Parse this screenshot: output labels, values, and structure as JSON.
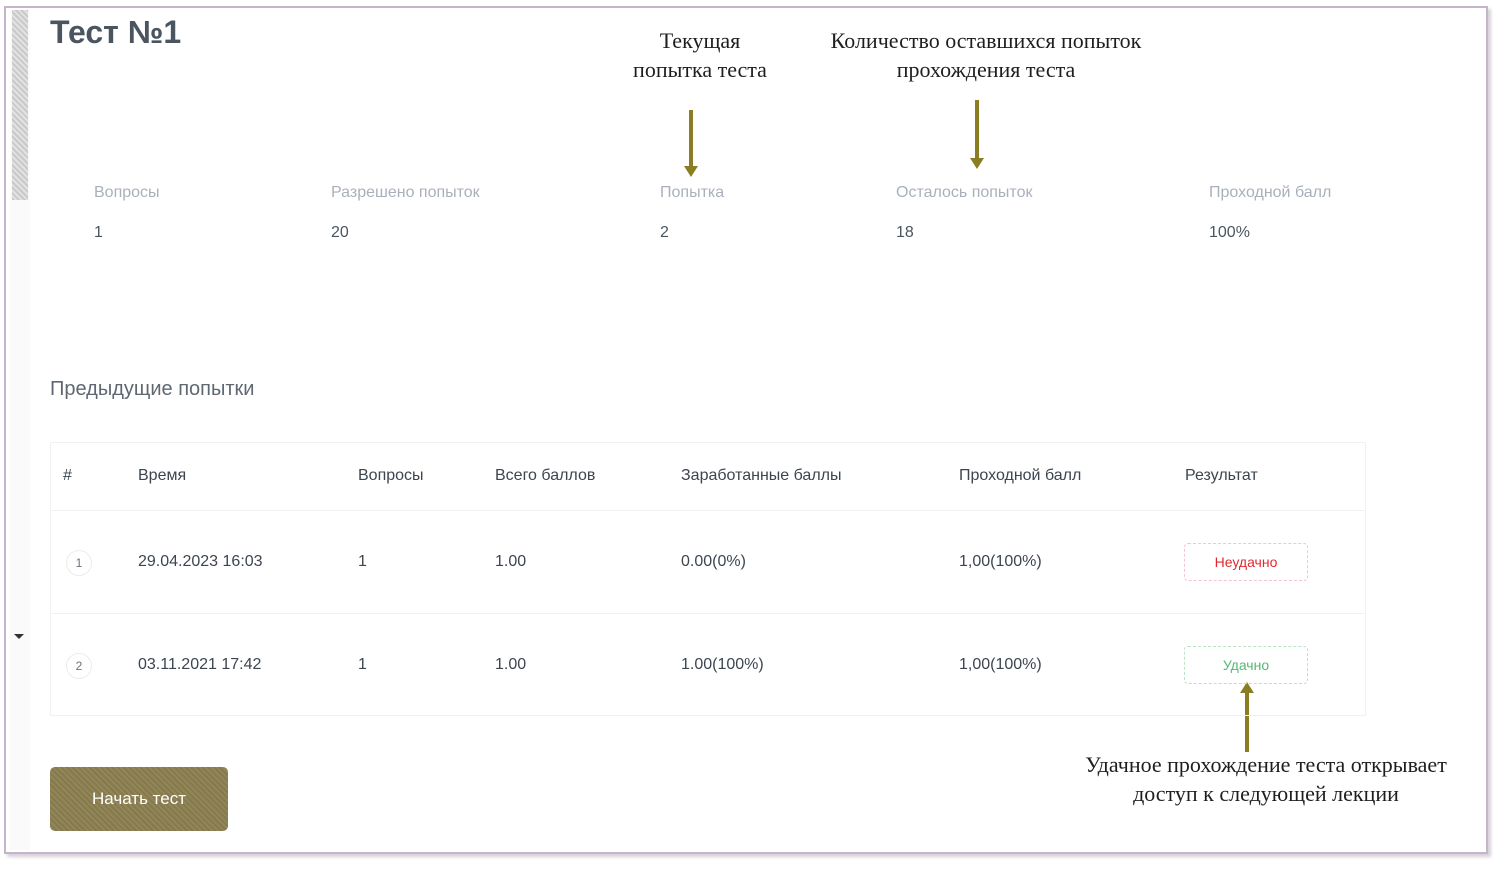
{
  "title": "Тест №1",
  "annotations": {
    "current_attempt": "Текущая\nпопытка теста",
    "remaining_attempts": "Количество оставшихся попыток\nпрохождения теста",
    "success_note": "Удачное прохождение теста открывает\nдоступ к следующей лекции"
  },
  "stats": [
    {
      "label": "Вопросы",
      "value": "1"
    },
    {
      "label": "Разрешено попыток",
      "value": "20"
    },
    {
      "label": "Попытка",
      "value": "2"
    },
    {
      "label": "Осталось попыток",
      "value": "18"
    },
    {
      "label": "Проходной балл",
      "value": "100%"
    }
  ],
  "previous_attempts": {
    "title": "Предыдущие попытки",
    "headers": [
      "#",
      "Время",
      "Вопросы",
      "Всего баллов",
      "Заработанные баллы",
      "Проходной балл",
      "Результат"
    ],
    "rows": [
      {
        "num": "1",
        "time": "29.04.2023 16:03",
        "questions": "1",
        "total": "1.00",
        "earned": "0.00(0%)",
        "passing": "1,00(100%)",
        "result": "Неудачно"
      },
      {
        "num": "2",
        "time": "03.11.2021 17:42",
        "questions": "1",
        "total": "1.00",
        "earned": "1.00(100%)",
        "passing": "1,00(100%)",
        "result": "Удачно"
      }
    ]
  },
  "start_button": "Начать тест",
  "colors": {
    "accent_button": "#8b7f52",
    "annotation_arrow": "#8a7d22",
    "fail": "#e0292f",
    "success": "#55b777"
  }
}
